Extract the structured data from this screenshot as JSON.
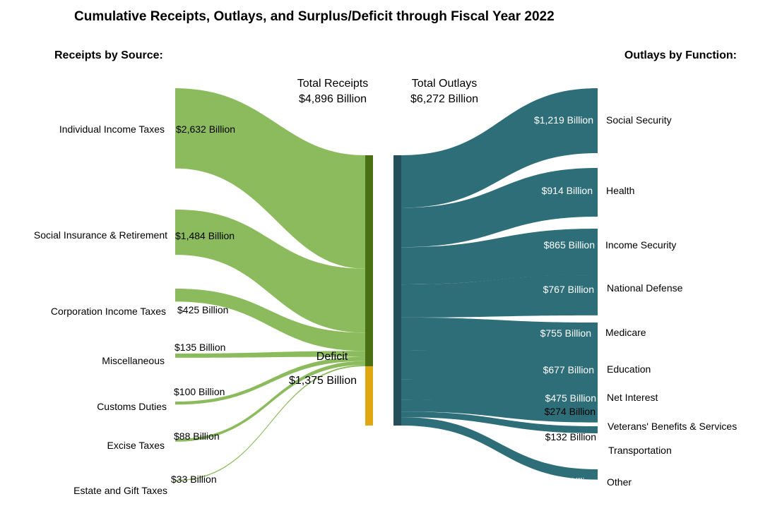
{
  "title": "Cumulative Receipts, Outlays, and Surplus/Deficit through Fiscal Year 2022",
  "receipts_heading": "Receipts by Source:",
  "outlays_heading": "Outlays by Function:",
  "total_receipts_label": "Total Receipts",
  "total_receipts_value": "$4,896 Billion",
  "total_outlays_label": "Total Outlays",
  "total_outlays_value": "$6,272 Billion",
  "deficit_label": "Deficit",
  "deficit_value": "$1,375 Billion",
  "colors": {
    "receipts_flow": "#8cbb5e",
    "receipts_bar": "#4a7014",
    "deficit_bar": "#e0a810",
    "outlays_flow": "#2e6e79",
    "outlays_bar": "#234f58"
  },
  "chart_data": {
    "type": "sankey",
    "units": "Billion USD",
    "receipts": [
      {
        "name": "Individual Income Taxes",
        "value": 2632,
        "label": "$2,632 Billion"
      },
      {
        "name": "Social Insurance & Retirement",
        "value": 1484,
        "label": "$1,484 Billion"
      },
      {
        "name": "Corporation Income Taxes",
        "value": 425,
        "label": "$425 Billion"
      },
      {
        "name": "Miscellaneous",
        "value": 135,
        "label": "$135 Billion"
      },
      {
        "name": "Customs Duties",
        "value": 100,
        "label": "$100 Billion"
      },
      {
        "name": "Excise Taxes",
        "value": 88,
        "label": "$88 Billion"
      },
      {
        "name": "Estate and Gift Taxes",
        "value": 33,
        "label": "$33 Billion"
      }
    ],
    "total_receipts": 4896,
    "deficit": 1375,
    "total_outlays": 6272,
    "outlays": [
      {
        "name": "Social Security",
        "value": 1219,
        "label": "$1,219 Billion"
      },
      {
        "name": "Health",
        "value": 914,
        "label": "$914 Billion"
      },
      {
        "name": "Income Security",
        "value": 865,
        "label": "$865 Billion"
      },
      {
        "name": "National Defense",
        "value": 767,
        "label": "$767 Billion"
      },
      {
        "name": "Medicare",
        "value": 755,
        "label": "$755 Billion"
      },
      {
        "name": "Education",
        "value": 677,
        "label": "$677 Billion"
      },
      {
        "name": "Net Interest",
        "value": 475,
        "label": "$475 Billion"
      },
      {
        "name": "Veterans' Benefits & Services",
        "value": 274,
        "label": "$274 Billion"
      },
      {
        "name": "Transportation",
        "value": 132,
        "label": "$132 Billion"
      },
      {
        "name": "Other",
        "value": 193,
        "label": "$193 Billion"
      }
    ]
  }
}
